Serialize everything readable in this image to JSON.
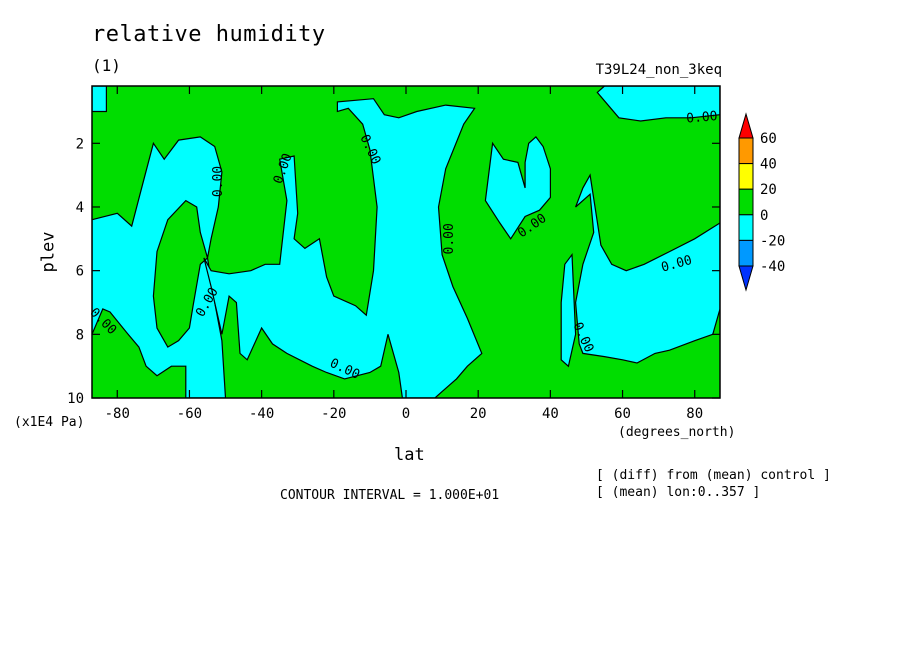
{
  "chart_data": {
    "type": "contour",
    "title": "relative humidity",
    "subtitle": "(1)",
    "run_label": "T39L24_non_3keq",
    "xlabel": "lat",
    "xunits": "(degrees_north)",
    "ylabel": "plev",
    "yunits": "(x1E4 Pa)",
    "xlim": [
      -87,
      87
    ],
    "ylim": [
      10,
      0.2
    ],
    "x_ticks": [
      "-80",
      "-60",
      "-40",
      "-20",
      "0",
      "20",
      "40",
      "60",
      "80"
    ],
    "y_ticks": [
      "2",
      "4",
      "6",
      "8",
      "10"
    ],
    "contour_interval_label": "CONTOUR INTERVAL = 1.000E+01",
    "contour_label": "0.00",
    "notes": [
      "[ (diff) from (mean) control ]",
      "[ (mean) lon:0..357 ]"
    ],
    "colorbar": {
      "labels": [
        "60",
        "40",
        "20",
        "0",
        "-20",
        "-40"
      ],
      "colors": [
        "#ff0000",
        "#ff9900",
        "#ffff00",
        "#00dd00",
        "#00ffff",
        "#0099ff",
        "#0033ff"
      ]
    },
    "regions": [
      {
        "fill": "#00ffff",
        "points": [
          [
            -87,
            0.2
          ],
          [
            -83,
            0.2
          ],
          [
            -83,
            1.0
          ],
          [
            -87,
            1.0
          ]
        ]
      },
      {
        "fill": "#00ffff",
        "points": [
          [
            -87,
            4.4
          ],
          [
            -80,
            4.2
          ],
          [
            -76,
            4.6
          ],
          [
            -73,
            3.3
          ],
          [
            -70,
            2.0
          ],
          [
            -67,
            2.5
          ],
          [
            -63,
            1.9
          ],
          [
            -57,
            1.8
          ],
          [
            -53,
            2.1
          ],
          [
            -51,
            2.9
          ],
          [
            -52,
            4.0
          ],
          [
            -54,
            5.0
          ],
          [
            -55,
            5.6
          ],
          [
            -57,
            4.8
          ],
          [
            -58,
            4.0
          ],
          [
            -61,
            3.8
          ],
          [
            -66,
            4.4
          ],
          [
            -69,
            5.4
          ],
          [
            -70,
            6.8
          ],
          [
            -69,
            7.8
          ],
          [
            -66,
            8.4
          ],
          [
            -63,
            8.2
          ],
          [
            -60,
            7.8
          ],
          [
            -59,
            7.1
          ],
          [
            -57,
            5.8
          ],
          [
            -55,
            5.6
          ],
          [
            -53,
            7.0
          ],
          [
            -51,
            8.2
          ],
          [
            -50,
            10
          ],
          [
            -61,
            10
          ],
          [
            -61,
            9.0
          ],
          [
            -65,
            9.0
          ],
          [
            -69,
            9.3
          ],
          [
            -72,
            9.0
          ],
          [
            -74,
            8.4
          ],
          [
            -77,
            8.0
          ],
          [
            -82,
            7.3
          ],
          [
            -84,
            7.2
          ],
          [
            -87,
            8.0
          ]
        ]
      },
      {
        "fill": "#00ffff",
        "points": [
          [
            -56,
            5.6
          ],
          [
            -54,
            6.0
          ],
          [
            -49,
            6.1
          ],
          [
            -43,
            6.0
          ],
          [
            -39,
            5.8
          ],
          [
            -35,
            5.8
          ],
          [
            -33,
            3.8
          ],
          [
            -35,
            2.5
          ],
          [
            -31,
            2.4
          ],
          [
            -30,
            4.2
          ],
          [
            -31,
            5.0
          ],
          [
            -28,
            5.3
          ],
          [
            -24,
            5.0
          ],
          [
            -22,
            6.2
          ],
          [
            -20,
            6.8
          ],
          [
            -14,
            7.1
          ],
          [
            -11,
            7.4
          ],
          [
            -9,
            6.0
          ],
          [
            -8,
            4.0
          ],
          [
            -10,
            2.2
          ],
          [
            -12,
            1.4
          ],
          [
            -16,
            0.9
          ],
          [
            -19,
            1.0
          ],
          [
            -19,
            0.7
          ],
          [
            -9,
            0.6
          ],
          [
            -6,
            1.1
          ],
          [
            -2,
            1.2
          ],
          [
            3,
            1.0
          ],
          [
            11,
            0.8
          ],
          [
            19,
            0.9
          ],
          [
            16,
            1.4
          ],
          [
            11,
            2.8
          ],
          [
            9,
            4.0
          ],
          [
            10,
            5.5
          ],
          [
            13,
            6.5
          ],
          [
            17,
            7.5
          ],
          [
            21,
            8.6
          ],
          [
            17,
            9.0
          ],
          [
            14,
            9.4
          ],
          [
            10,
            9.8
          ],
          [
            8,
            10
          ],
          [
            -1,
            10
          ],
          [
            -2,
            9.2
          ],
          [
            -5,
            8.0
          ],
          [
            -7,
            9.0
          ],
          [
            -10,
            9.2
          ],
          [
            -17,
            9.4
          ],
          [
            -22,
            9.2
          ],
          [
            -26,
            9.0
          ],
          [
            -33,
            8.6
          ],
          [
            -37,
            8.3
          ],
          [
            -40,
            7.8
          ],
          [
            -44,
            8.8
          ],
          [
            -46,
            8.6
          ],
          [
            -47,
            7.0
          ],
          [
            -49,
            6.8
          ],
          [
            -51,
            8.0
          ],
          [
            -52,
            7.5
          ],
          [
            -54,
            6.5
          ]
        ]
      },
      {
        "fill": "#00ffff",
        "points": [
          [
            33,
            3.4
          ],
          [
            31,
            2.6
          ],
          [
            27,
            2.5
          ],
          [
            24,
            2.0
          ],
          [
            22,
            3.8
          ],
          [
            26,
            4.5
          ],
          [
            29,
            5.0
          ],
          [
            33,
            4.3
          ],
          [
            37,
            4.1
          ],
          [
            40,
            3.7
          ],
          [
            40,
            2.8
          ],
          [
            38,
            2.1
          ],
          [
            36,
            1.8
          ],
          [
            34,
            2.0
          ],
          [
            33,
            2.6
          ]
        ]
      },
      {
        "fill": "#00ffff",
        "points": [
          [
            47,
            4.0
          ],
          [
            51,
            3.6
          ],
          [
            52,
            4.8
          ],
          [
            49,
            5.8
          ],
          [
            47,
            7.0
          ],
          [
            48,
            8.3
          ],
          [
            49,
            8.6
          ],
          [
            55,
            8.7
          ],
          [
            60,
            8.8
          ],
          [
            64,
            8.9
          ],
          [
            69,
            8.6
          ],
          [
            73,
            8.5
          ],
          [
            80,
            8.2
          ],
          [
            85,
            8.0
          ],
          [
            87,
            7.2
          ],
          [
            87,
            4.5
          ],
          [
            80,
            5.0
          ],
          [
            73,
            5.4
          ],
          [
            66,
            5.8
          ],
          [
            61,
            6.0
          ],
          [
            57,
            5.8
          ],
          [
            54,
            5.2
          ],
          [
            51,
            3.0
          ],
          [
            49,
            3.4
          ]
        ]
      },
      {
        "fill": "#00ffff",
        "points": [
          [
            44,
            5.8
          ],
          [
            46,
            5.5
          ],
          [
            47,
            8.0
          ],
          [
            45,
            9.0
          ],
          [
            43,
            8.8
          ],
          [
            43,
            7.0
          ]
        ]
      },
      {
        "fill": "#00ffff",
        "points": [
          [
            53,
            0.4
          ],
          [
            55,
            0.2
          ],
          [
            87,
            0.2
          ],
          [
            87,
            1.1
          ],
          [
            79,
            1.2
          ],
          [
            72,
            1.2
          ],
          [
            65,
            1.3
          ],
          [
            59,
            1.2
          ]
        ]
      }
    ],
    "contour_labels": [
      {
        "x": -52,
        "y": 3.2,
        "rot": -90
      },
      {
        "x": -34,
        "y": 2.8,
        "rot": -70
      },
      {
        "x": -10,
        "y": 2.2,
        "rot": 65
      },
      {
        "x": 12,
        "y": 5.0,
        "rot": -90
      },
      {
        "x": 35,
        "y": 4.6,
        "rot": -35
      },
      {
        "x": 82,
        "y": 1.2,
        "rot": -5
      },
      {
        "x": 75,
        "y": 5.8,
        "rot": -15
      },
      {
        "x": -17,
        "y": 9.1,
        "rot": 25
      },
      {
        "x": -55,
        "y": 7.0,
        "rot": -60
      },
      {
        "x": -84,
        "y": 7.6,
        "rot": 45
      },
      {
        "x": 49,
        "y": 8.1,
        "rot": 65
      }
    ]
  }
}
